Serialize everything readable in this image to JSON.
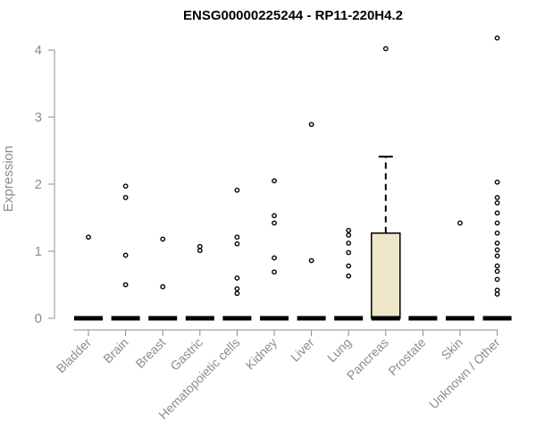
{
  "chart_data": {
    "type": "box",
    "title": "ENSG00000225244 - RP11-220H4.2",
    "xlabel": "",
    "ylabel": "Expression",
    "ylim": [
      0,
      4.2
    ],
    "yticks": [
      0,
      1,
      2,
      3,
      4
    ],
    "categories": [
      "Bladder",
      "Brain",
      "Breast",
      "Gastric",
      "Hematopoietic cells",
      "Kidney",
      "Liver",
      "Lung",
      "Pancreas",
      "Prostate",
      "Skin",
      "Unknown / Other"
    ],
    "colors": {
      "box_fill": "#ede6c8",
      "outline": "#000000",
      "axis": "#8c8c8c"
    },
    "boxes": [
      {
        "category": "Bladder",
        "q1": 0,
        "median": 0,
        "q3": 0,
        "whisker_low": 0,
        "whisker_high": 0,
        "outliers": [
          1.21
        ]
      },
      {
        "category": "Brain",
        "q1": 0,
        "median": 0,
        "q3": 0,
        "whisker_low": 0,
        "whisker_high": 0,
        "outliers": [
          0.5,
          0.94,
          1.8,
          1.97
        ]
      },
      {
        "category": "Breast",
        "q1": 0,
        "median": 0,
        "q3": 0,
        "whisker_low": 0,
        "whisker_high": 0,
        "outliers": [
          0.47,
          1.18
        ]
      },
      {
        "category": "Gastric",
        "q1": 0,
        "median": 0,
        "q3": 0,
        "whisker_low": 0,
        "whisker_high": 0,
        "outliers": [
          1.01,
          1.07
        ]
      },
      {
        "category": "Hematopoietic cells",
        "q1": 0,
        "median": 0,
        "q3": 0,
        "whisker_low": 0,
        "whisker_high": 0,
        "outliers": [
          0.37,
          0.44,
          0.6,
          1.11,
          1.21,
          1.91
        ]
      },
      {
        "category": "Kidney",
        "q1": 0,
        "median": 0,
        "q3": 0,
        "whisker_low": 0,
        "whisker_high": 0,
        "outliers": [
          0.69,
          0.9,
          1.42,
          1.53,
          2.05
        ]
      },
      {
        "category": "Liver",
        "q1": 0,
        "median": 0,
        "q3": 0,
        "whisker_low": 0,
        "whisker_high": 0,
        "outliers": [
          0.86,
          2.89
        ]
      },
      {
        "category": "Lung",
        "q1": 0,
        "median": 0,
        "q3": 0,
        "whisker_low": 0,
        "whisker_high": 0,
        "outliers": [
          0.63,
          0.78,
          0.98,
          1.12,
          1.24,
          1.31
        ]
      },
      {
        "category": "Pancreas",
        "q1": 0,
        "median": 0,
        "q3": 1.27,
        "whisker_low": 0,
        "whisker_high": 2.41,
        "outliers": [
          4.02
        ]
      },
      {
        "category": "Prostate",
        "q1": 0,
        "median": 0,
        "q3": 0,
        "whisker_low": 0,
        "whisker_high": 0,
        "outliers": []
      },
      {
        "category": "Skin",
        "q1": 0,
        "median": 0,
        "q3": 0,
        "whisker_low": 0,
        "whisker_high": 0,
        "outliers": [
          1.42
        ]
      },
      {
        "category": "Unknown / Other",
        "q1": 0,
        "median": 0,
        "q3": 0,
        "whisker_low": 0,
        "whisker_high": 0,
        "outliers": [
          0.36,
          0.42,
          0.58,
          0.7,
          0.78,
          0.93,
          1.02,
          1.12,
          1.27,
          1.42,
          1.57,
          1.72,
          1.8,
          2.03,
          4.18
        ]
      }
    ],
    "grid": false,
    "legend": "none"
  }
}
